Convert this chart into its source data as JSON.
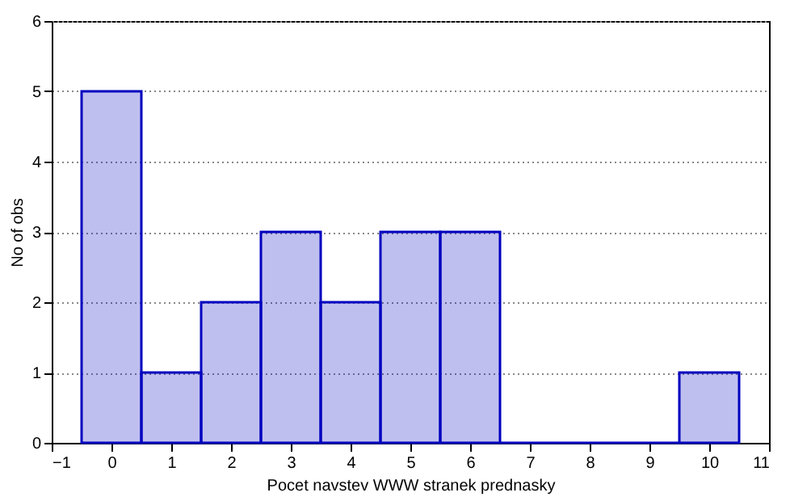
{
  "chart_data": {
    "type": "histogram",
    "xlabel": "Pocet navstev WWW stranek prednasky",
    "ylabel": "No of obs",
    "bins": [
      -0.5,
      0.5,
      1.5,
      2.5,
      3.5,
      4.5,
      5.5,
      6.5,
      7.5,
      8.5,
      9.5,
      10.5
    ],
    "values": [
      5,
      1,
      2,
      3,
      2,
      3,
      3,
      0,
      0,
      0,
      1
    ],
    "color": "#0000c0",
    "xlim": [
      -1,
      11
    ],
    "xticks": [
      -1,
      0,
      1,
      2,
      3,
      4,
      5,
      6,
      7,
      8,
      9,
      10,
      11
    ],
    "ylim": [
      0,
      6
    ],
    "yticks": [
      0,
      1,
      2,
      3,
      4,
      5,
      6
    ],
    "grid": "y",
    "legend": false
  }
}
